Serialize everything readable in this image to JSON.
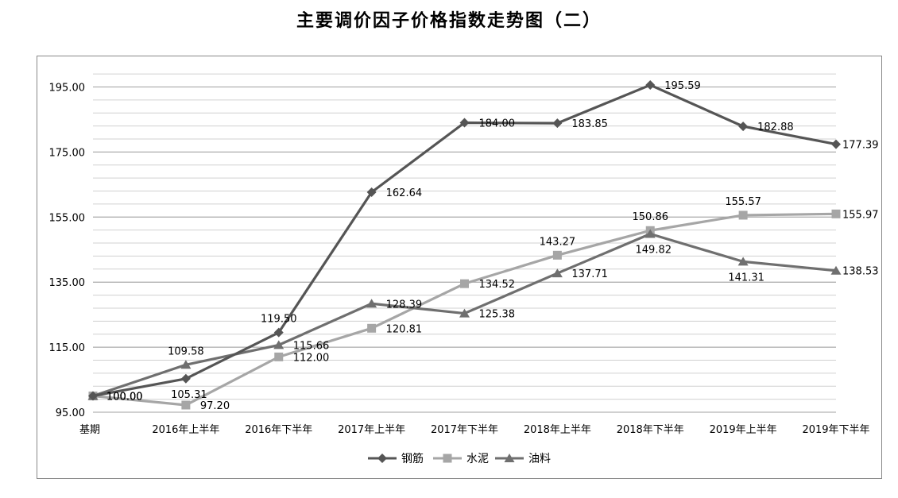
{
  "chart_data": {
    "type": "line",
    "title": "主要调价因子价格指数走势图（二）",
    "categories": [
      "基期",
      "2016年上半年",
      "2016年下半年",
      "2017年上半年",
      "2017年下半年",
      "2018年上半年",
      "2018年下半年",
      "2019年上半年",
      "2019年下半年"
    ],
    "series": [
      {
        "name": "钢筋",
        "marker": "diamond",
        "color": "#555555",
        "values": [
          100.0,
          105.31,
          119.5,
          162.64,
          184.0,
          183.85,
          195.59,
          182.88,
          177.39
        ],
        "labels": [
          "100.00",
          "105.31",
          "119.50",
          "162.64",
          "184.00",
          "183.85",
          "195.59",
          "182.88",
          "177.39"
        ]
      },
      {
        "name": "水泥",
        "marker": "square",
        "color": "#a6a6a6",
        "values": [
          100.0,
          97.2,
          112.0,
          120.81,
          134.52,
          143.27,
          150.86,
          155.57,
          155.97
        ],
        "labels": [
          "100.00",
          "97.20",
          "112.00",
          "120.81",
          "134.52",
          "143.27",
          "150.86",
          "155.57",
          "155.97"
        ]
      },
      {
        "name": "油料",
        "marker": "triangle",
        "color": "#6f6f6f",
        "values": [
          100.0,
          109.58,
          115.66,
          128.39,
          125.38,
          137.71,
          149.82,
          141.31,
          138.53
        ],
        "labels": [
          "100.00",
          "109.58",
          "115.66",
          "128.39",
          "125.38",
          "137.71",
          "149.82",
          "141.31",
          "138.53"
        ]
      }
    ],
    "y_ticks": [
      "95.00",
      "115.00",
      "135.00",
      "155.00",
      "175.00",
      "195.00"
    ],
    "ylim": [
      95,
      200
    ],
    "y_major_step": 20,
    "y_minor_step": 4,
    "grid": true,
    "legend_position": "bottom"
  }
}
